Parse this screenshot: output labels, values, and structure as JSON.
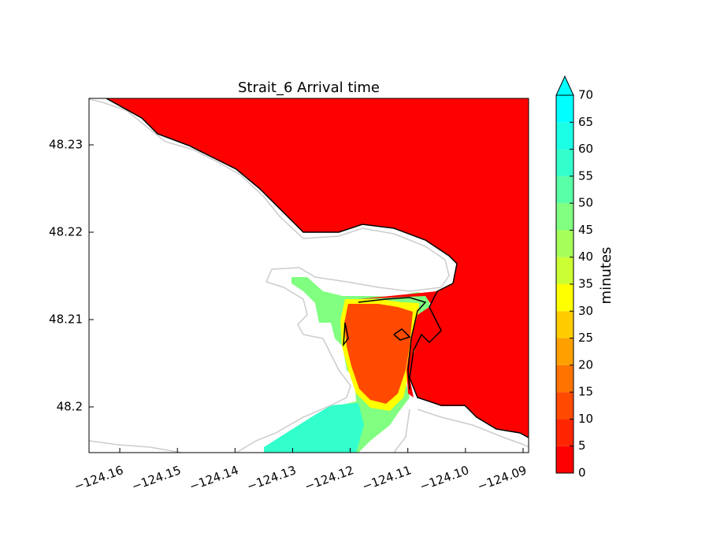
{
  "chart_data": {
    "type": "contourf",
    "title": "Strait_6 Arrival time",
    "xlim": [
      -124.16534,
      -124.08904
    ],
    "ylim": [
      48.19477,
      48.23532
    ],
    "xticks": [
      {
        "value": -124.16,
        "label": "−124.16"
      },
      {
        "value": -124.15,
        "label": "−124.15"
      },
      {
        "value": -124.14,
        "label": "−124.14"
      },
      {
        "value": -124.13,
        "label": "−124.13"
      },
      {
        "value": -124.12,
        "label": "−124.12"
      },
      {
        "value": -124.11,
        "label": "−124.11"
      },
      {
        "value": -124.1,
        "label": "−124.10"
      },
      {
        "value": -124.09,
        "label": "−124.09"
      }
    ],
    "yticks": [
      48.2,
      48.21,
      48.22,
      48.23
    ],
    "colorbar": {
      "label": "minutes",
      "ticks": [
        0,
        5,
        10,
        15,
        20,
        25,
        30,
        35,
        40,
        45,
        50,
        55,
        60,
        65,
        70
      ],
      "colors": [
        "#ff0000",
        "#ff2500",
        "#ff4a00",
        "#ff7400",
        "#ffa000",
        "#ffcc00",
        "#ffff00",
        "#ccff33",
        "#a6ff59",
        "#80ff80",
        "#59ffa6",
        "#33ffcc",
        "#1affe6",
        "#00ffff"
      ],
      "extend_color": "#00ffff"
    }
  }
}
